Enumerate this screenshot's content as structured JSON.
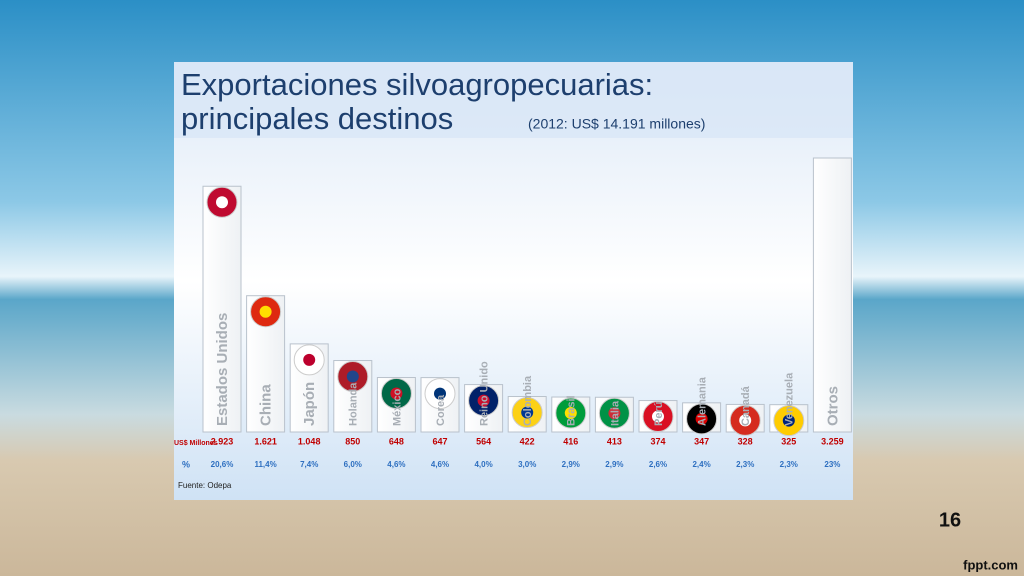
{
  "chart_data": {
    "type": "bar",
    "title": "Exportaciones silvoagropecuarias:",
    "subtitle": "principales destinos",
    "title_note": "(2012: US$ 14.191 millones)",
    "categories": [
      "Estados Unidos",
      "China",
      "Japón",
      "Holanda",
      "México",
      "Corea",
      "Reino Unido",
      "Colombia",
      "Brasil",
      "Italia",
      "Perú",
      "Alemania",
      "Canadá",
      "Venezuela",
      "Otros"
    ],
    "series": [
      {
        "name": "US$ Millones",
        "color": "#c00000",
        "values": [
          2923,
          1621,
          1048,
          850,
          648,
          647,
          564,
          422,
          416,
          413,
          374,
          347,
          328,
          325,
          3259
        ],
        "value_labels": [
          "2.923",
          "1.621",
          "1.048",
          "850",
          "648",
          "647",
          "564",
          "422",
          "416",
          "413",
          "374",
          "347",
          "328",
          "325",
          "3.259"
        ]
      },
      {
        "name": "%",
        "color": "#2e6fc0",
        "values": [
          20.6,
          11.4,
          7.4,
          6.0,
          4.6,
          4.6,
          4.0,
          3.0,
          2.9,
          2.9,
          2.6,
          2.4,
          2.3,
          2.3,
          23
        ],
        "value_labels": [
          "20,6%",
          "11,4%",
          "7,4%",
          "6,0%",
          "4,6%",
          "4,6%",
          "4,0%",
          "3,0%",
          "2,9%",
          "2,9%",
          "2,6%",
          "2,4%",
          "2,3%",
          "2,3%",
          "23%"
        ]
      }
    ],
    "source": "Fuente: Odepa"
  },
  "slide_number": "16",
  "footer": "fppt.com"
}
